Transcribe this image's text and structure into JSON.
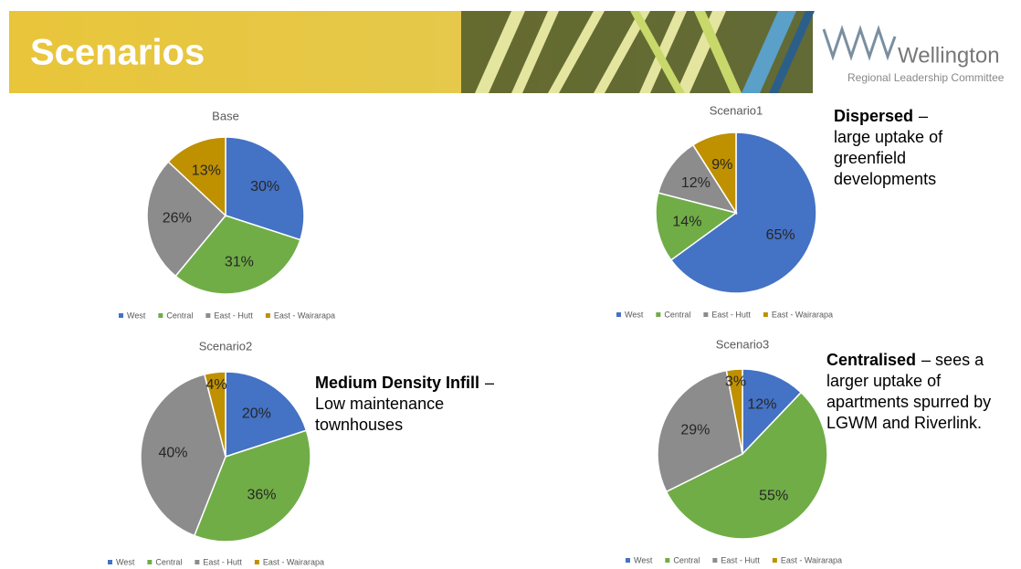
{
  "header": {
    "title": "Scenarios",
    "logo_name": "Wellington",
    "logo_subtitle": "Regional Leadership Committee"
  },
  "chart_data": [
    {
      "type": "pie",
      "title": "Base",
      "categories": [
        "West",
        "Central",
        "East - Hutt",
        "East - Wairarapa"
      ],
      "values": [
        30,
        31,
        26,
        13
      ],
      "value_labels": [
        "30%",
        "31%",
        "26%",
        "13%"
      ],
      "colors": [
        "#4472c4",
        "#70ad47",
        "#8c8c8c",
        "#bf9000"
      ]
    },
    {
      "type": "pie",
      "title": "Scenario1",
      "categories": [
        "West",
        "Central",
        "East - Hutt",
        "East - Wairarapa"
      ],
      "values": [
        65,
        14,
        12,
        9
      ],
      "value_labels": [
        "65%",
        "14%",
        "12%",
        "9%"
      ],
      "colors": [
        "#4472c4",
        "#70ad47",
        "#8c8c8c",
        "#bf9000"
      ],
      "annotation": {
        "bold": "Dispersed",
        "lines": [
          "–",
          "large uptake of",
          "greenfield",
          "developments"
        ]
      }
    },
    {
      "type": "pie",
      "title": "Scenario2",
      "categories": [
        "West",
        "Central",
        "East - Hutt",
        "East - Wairarapa"
      ],
      "values": [
        20,
        36,
        40,
        4
      ],
      "value_labels": [
        "20%",
        "36%",
        "40%",
        "4%"
      ],
      "colors": [
        "#4472c4",
        "#70ad47",
        "#8c8c8c",
        "#bf9000"
      ],
      "annotation": {
        "bold": "Medium Density Infill",
        "lines": [
          "–",
          "Low maintenance",
          "townhouses"
        ]
      }
    },
    {
      "type": "pie",
      "title": "Scenario3",
      "categories": [
        "West",
        "Central",
        "East - Hutt",
        "East - Wairarapa"
      ],
      "values": [
        12,
        55,
        29,
        3
      ],
      "value_labels": [
        "12%",
        "55%",
        "29%",
        "3%"
      ],
      "colors": [
        "#4472c4",
        "#70ad47",
        "#8c8c8c",
        "#bf9000"
      ],
      "annotation": {
        "bold": "Centralised",
        "lines": [
          "– sees a",
          "larger uptake of",
          "apartments spurred by",
          "LGWM and Riverlink."
        ]
      }
    }
  ]
}
